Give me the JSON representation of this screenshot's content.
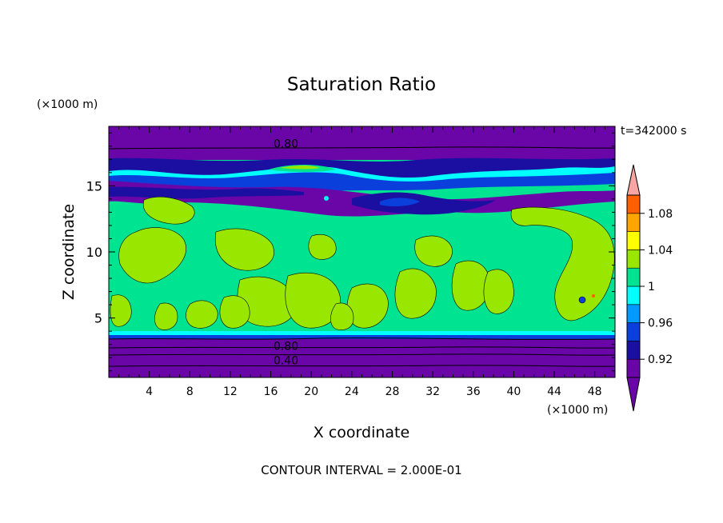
{
  "chart_data": {
    "type": "heatmap",
    "title": "Saturation Ratio",
    "xlabel": "X coordinate",
    "ylabel": "Z coordinate",
    "x_unit": "(×1000 m)",
    "y_unit": "(×1000 m)",
    "time_label": "t=342000 s",
    "footer": "CONTOUR INTERVAL = 2.000E-01",
    "xlim": [
      0,
      50
    ],
    "ylim": [
      0.5,
      19.5
    ],
    "x_ticks": [
      4,
      8,
      12,
      16,
      20,
      24,
      28,
      32,
      36,
      40,
      44,
      48
    ],
    "y_ticks": [
      5,
      10,
      15
    ],
    "contour_labels": [
      {
        "text": "0.80",
        "x": 17.5,
        "y": 18.2
      },
      {
        "text": "0.80",
        "x": 17.5,
        "y": 2.9
      },
      {
        "text": "0.40",
        "x": 17.5,
        "y": 1.8
      }
    ],
    "colorbar": {
      "levels": [
        0.9,
        0.92,
        0.94,
        0.96,
        0.98,
        1.0,
        1.02,
        1.04,
        1.06,
        1.08,
        1.1
      ],
      "tick_labels": [
        "0.92",
        "0.96",
        "1",
        "1.04",
        "1.08"
      ],
      "colors": [
        "#6a06a8",
        "#1a0fa0",
        "#0a3fdc",
        "#0099ff",
        "#00ffff",
        "#00e391",
        "#99e600",
        "#ffff00",
        "#ffa500",
        "#ff5f00",
        "#ff1c1c"
      ],
      "under_color": "#6a06a8",
      "over_color": "#f7a5a5"
    },
    "regions": [
      {
        "range": "z < 3.5",
        "value": "< 0.90"
      },
      {
        "range": "3.5 < z < 14",
        "value": "0.98 - 1.02"
      },
      {
        "range": "14 < z < 18",
        "value": "0.90 - 0.98"
      },
      {
        "range": "z > 18",
        "value": "< 0.90"
      }
    ]
  }
}
